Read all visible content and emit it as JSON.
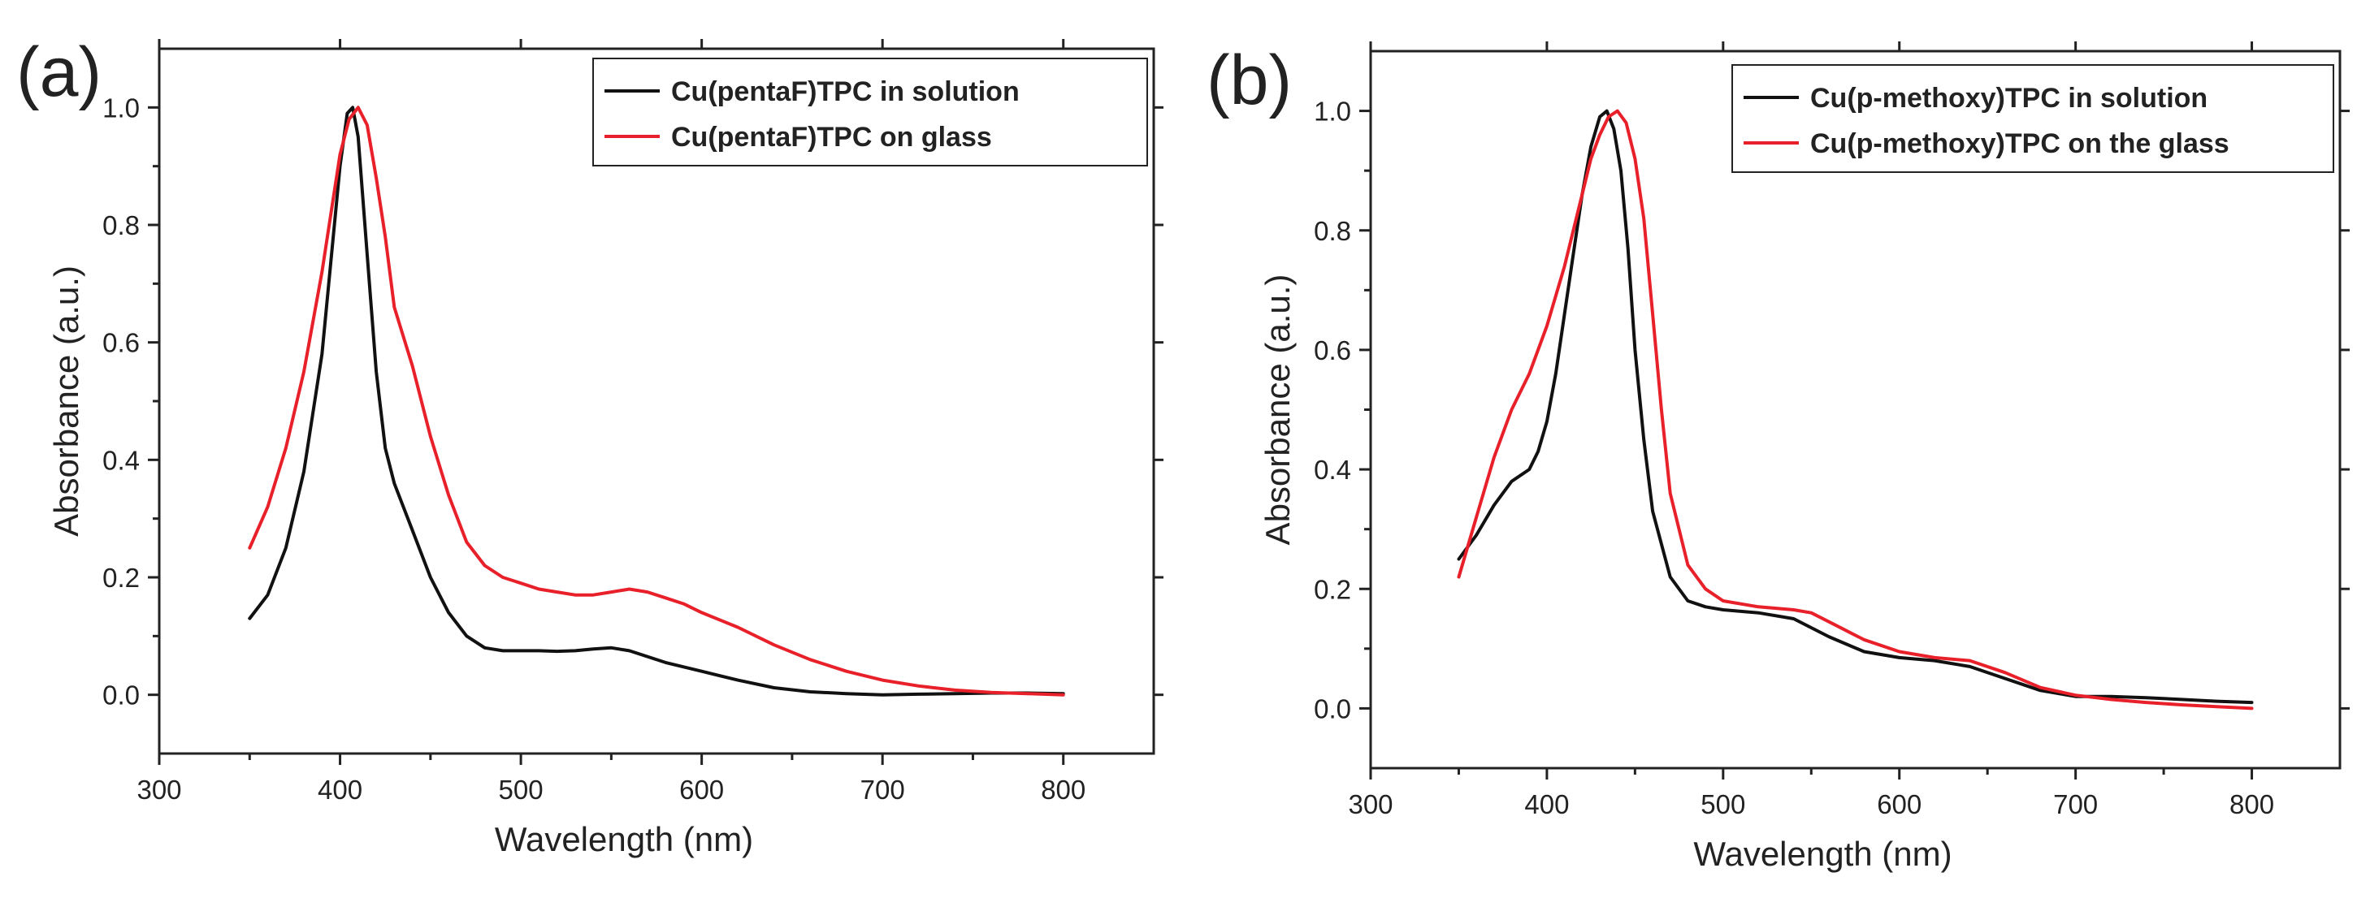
{
  "chart_data": [
    {
      "panel_label": "(a)",
      "type": "line",
      "xlabel": "Wavelength (nm)",
      "ylabel": "Absorbance (a.u.)",
      "xlim": [
        300,
        850
      ],
      "ylim": [
        -0.1,
        1.1
      ],
      "x_ticks": [
        300,
        400,
        500,
        600,
        700,
        800
      ],
      "y_ticks": [
        0.0,
        0.2,
        0.4,
        0.6,
        0.8,
        1.0
      ],
      "x_tick_labels": [
        "300",
        "400",
        "500",
        "600",
        "700",
        "800"
      ],
      "y_tick_labels": [
        "0.0",
        "0.2",
        "0.4",
        "0.6",
        "0.8",
        "1.0"
      ],
      "grid": false,
      "legend_position": "top-right",
      "series": [
        {
          "name": "Cu(pentaF)TPC in solution",
          "color": "#111111",
          "x": [
            350,
            360,
            370,
            380,
            390,
            395,
            400,
            404,
            407,
            410,
            415,
            420,
            425,
            430,
            440,
            450,
            460,
            470,
            480,
            490,
            500,
            510,
            520,
            530,
            540,
            550,
            560,
            570,
            580,
            600,
            620,
            640,
            660,
            680,
            700,
            720,
            740,
            760,
            780,
            800
          ],
          "values": [
            0.13,
            0.17,
            0.25,
            0.38,
            0.58,
            0.74,
            0.9,
            0.99,
            1.0,
            0.95,
            0.75,
            0.55,
            0.42,
            0.36,
            0.28,
            0.2,
            0.14,
            0.1,
            0.08,
            0.075,
            0.075,
            0.075,
            0.074,
            0.075,
            0.078,
            0.08,
            0.075,
            0.065,
            0.055,
            0.04,
            0.025,
            0.012,
            0.005,
            0.002,
            0.0,
            0.001,
            0.002,
            0.003,
            0.003,
            0.002
          ]
        },
        {
          "name": "Cu(pentaF)TPC on glass",
          "color": "#e8202a",
          "x": [
            350,
            360,
            370,
            380,
            390,
            395,
            400,
            405,
            410,
            415,
            420,
            425,
            430,
            440,
            450,
            460,
            470,
            480,
            490,
            500,
            510,
            520,
            530,
            540,
            550,
            560,
            570,
            580,
            590,
            600,
            620,
            640,
            660,
            680,
            700,
            720,
            740,
            760,
            780,
            800
          ],
          "values": [
            0.25,
            0.32,
            0.42,
            0.55,
            0.72,
            0.82,
            0.92,
            0.98,
            1.0,
            0.97,
            0.88,
            0.78,
            0.66,
            0.56,
            0.44,
            0.34,
            0.26,
            0.22,
            0.2,
            0.19,
            0.18,
            0.175,
            0.17,
            0.17,
            0.175,
            0.18,
            0.175,
            0.165,
            0.155,
            0.14,
            0.115,
            0.085,
            0.06,
            0.04,
            0.025,
            0.015,
            0.008,
            0.004,
            0.002,
            0.0
          ]
        }
      ]
    },
    {
      "panel_label": "(b)",
      "type": "line",
      "xlabel": "Wavelength (nm)",
      "ylabel": "Absorbance (a.u.)",
      "xlim": [
        300,
        850
      ],
      "ylim": [
        -0.1,
        1.1
      ],
      "x_ticks": [
        300,
        400,
        500,
        600,
        700,
        800
      ],
      "y_ticks": [
        0.0,
        0.2,
        0.4,
        0.6,
        0.8,
        1.0
      ],
      "x_tick_labels": [
        "300",
        "400",
        "500",
        "600",
        "700",
        "800"
      ],
      "y_tick_labels": [
        "0.0",
        "0.2",
        "0.4",
        "0.6",
        "0.8",
        "1.0"
      ],
      "grid": false,
      "legend_position": "top-right",
      "series": [
        {
          "name": "Cu(p-methoxy)TPC in solution",
          "color": "#111111",
          "x": [
            350,
            360,
            370,
            380,
            390,
            395,
            400,
            405,
            410,
            415,
            420,
            425,
            430,
            434,
            438,
            442,
            446,
            450,
            455,
            460,
            470,
            480,
            490,
            500,
            520,
            540,
            560,
            580,
            600,
            620,
            640,
            660,
            680,
            700,
            720,
            740,
            760,
            780,
            800
          ],
          "values": [
            0.25,
            0.29,
            0.34,
            0.38,
            0.4,
            0.43,
            0.48,
            0.56,
            0.66,
            0.76,
            0.86,
            0.94,
            0.99,
            1.0,
            0.97,
            0.9,
            0.77,
            0.6,
            0.45,
            0.33,
            0.22,
            0.18,
            0.17,
            0.165,
            0.16,
            0.15,
            0.12,
            0.095,
            0.085,
            0.08,
            0.07,
            0.05,
            0.03,
            0.02,
            0.02,
            0.018,
            0.015,
            0.012,
            0.01
          ]
        },
        {
          "name": "Cu(p-methoxy)TPC on the glass",
          "color": "#e8202a",
          "x": [
            350,
            360,
            370,
            380,
            390,
            400,
            410,
            415,
            420,
            425,
            430,
            435,
            440,
            445,
            450,
            455,
            460,
            465,
            470,
            480,
            490,
            500,
            520,
            540,
            550,
            560,
            580,
            600,
            620,
            640,
            660,
            680,
            700,
            720,
            740,
            760,
            780,
            800
          ],
          "values": [
            0.22,
            0.32,
            0.42,
            0.5,
            0.56,
            0.64,
            0.74,
            0.8,
            0.86,
            0.92,
            0.96,
            0.99,
            1.0,
            0.98,
            0.92,
            0.82,
            0.66,
            0.5,
            0.36,
            0.24,
            0.2,
            0.18,
            0.17,
            0.165,
            0.16,
            0.145,
            0.115,
            0.095,
            0.085,
            0.08,
            0.06,
            0.035,
            0.022,
            0.015,
            0.01,
            0.006,
            0.003,
            0.0
          ]
        }
      ]
    }
  ]
}
